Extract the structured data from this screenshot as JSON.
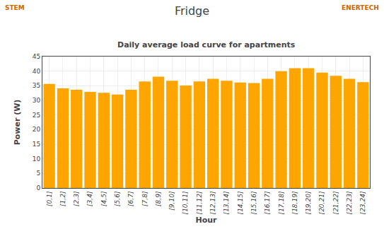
{
  "chart_data": {
    "type": "bar",
    "title": "Fridge",
    "subtitle": "Daily average load curve for apartments",
    "xlabel": "Hour",
    "ylabel": "Power (W)",
    "annotations": [
      {
        "text": "STEM",
        "color": "#CC6600"
      },
      {
        "text": "ENERTECH",
        "color": "#CC6600"
      }
    ],
    "categories": [
      "[0,1]",
      "[1,2]",
      "[2,3]",
      "[3,4]",
      "[4,5]",
      "[5,6]",
      "[6,7]",
      "[7,8]",
      "[8,9]",
      "[9,10]",
      "[10,11]",
      "[11,12]",
      "[12,13]",
      "[13,14]",
      "[14,15]",
      "[15,16]",
      "[16,17]",
      "[17,18]",
      "[18,19]",
      "[19,20]",
      "[20,21]",
      "[21,22]",
      "[22,23]",
      "[23,24]"
    ],
    "values": [
      35.6,
      34.1,
      33.6,
      32.9,
      32.6,
      32.0,
      33.6,
      36.5,
      38.1,
      36.7,
      35.1,
      36.5,
      37.4,
      36.7,
      36.1,
      35.9,
      37.4,
      40.0,
      41.0,
      41.0,
      39.5,
      38.4,
      37.4,
      36.2
    ],
    "color": "#FFA500",
    "ylim": [
      0,
      45
    ],
    "yticks": [
      0,
      5,
      10,
      15,
      20,
      25,
      30,
      35,
      40,
      45
    ],
    "grid": true
  }
}
